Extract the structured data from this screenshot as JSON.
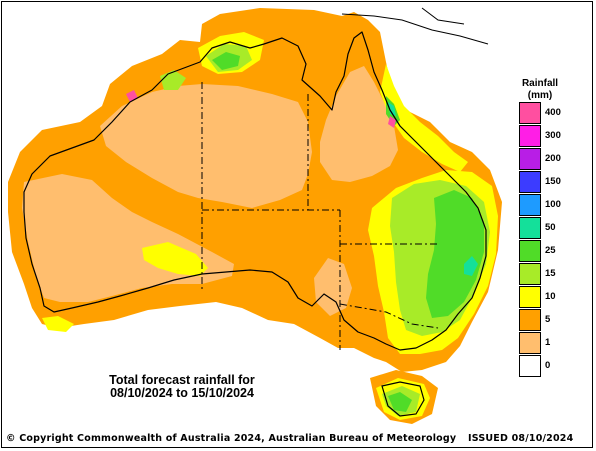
{
  "legend": {
    "title_line1": "Rainfall",
    "title_line2": "(mm)",
    "entries": [
      {
        "label": "400",
        "color": "#ff4fa0"
      },
      {
        "label": "300",
        "color": "#ff1ee6"
      },
      {
        "label": "200",
        "color": "#b81ee6"
      },
      {
        "label": "150",
        "color": "#3c3cff"
      },
      {
        "label": "100",
        "color": "#1e9bff"
      },
      {
        "label": "50",
        "color": "#14e09a"
      },
      {
        "label": "25",
        "color": "#50dc28"
      },
      {
        "label": "15",
        "color": "#a8eb28"
      },
      {
        "label": "10",
        "color": "#ffff00"
      },
      {
        "label": "5",
        "color": "#ffa000"
      },
      {
        "label": "1",
        "color": "#ffbe6e"
      },
      {
        "label": "0",
        "color": "#ffffff"
      }
    ]
  },
  "caption": {
    "line1": "Total forecast rainfall for",
    "line2": "08/10/2024 to 15/10/2024"
  },
  "footer": {
    "copyright": "© Copyright Commonwealth of Australia 2024, Australian Bureau of Meteorology",
    "issued": "ISSUED 08/10/2024"
  },
  "colors": {
    "sea": "#ffffff",
    "outline": "#000000"
  }
}
